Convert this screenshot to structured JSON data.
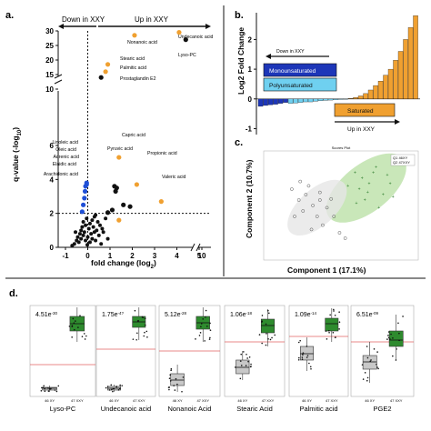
{
  "colors": {
    "orange": "#f0a030",
    "blue": "#1f4fd6",
    "black": "#111111",
    "dark_blue": "#1d36b8",
    "light_blue": "#6fd0f0",
    "green_ellipse": "#bfe3ad",
    "green_box": "#2e8b2e",
    "grey_box": "#c8c8c8",
    "red_line": "#e06060"
  },
  "panel_a": {
    "letter": "a.",
    "down_label": "Down  in XXY",
    "up_label": "Up in XXY",
    "xlabel": "fold change (log",
    "xlabel_sub": "2",
    "xlabel_end": ")",
    "ylabel": "q-value (-log",
    "ylabel_sub": "10",
    "ylabel_end": ")",
    "labels": [
      "Undecanoic acid",
      "Nonanoic acid",
      "Lyso-PC",
      "Stearic acid",
      "Palmitic acid",
      "Prostaglandin E2",
      "Capric acid",
      "Pyruvic acid",
      "Propionic acid",
      "Valeric acid",
      "Linoleic acid",
      "Oleic acid",
      "Adrenic acid",
      "Elaidic acid",
      "Arachidonic acid"
    ]
  },
  "panel_b": {
    "letter": "b.",
    "ylabel": "Log2 Fold Change",
    "down_label": "Down in XXY",
    "up_label": "Up in XXY",
    "legend_mono": "Monounsaturated",
    "legend_poly": "Polyunsaturated",
    "legend_sat": "Saturated"
  },
  "panel_c": {
    "letter": "c.",
    "title": "Scores Plot",
    "xlabel": "Component 1 (17.1%)",
    "ylabel": "Component 2 (10.7%)",
    "legend": [
      "Q1 46XY",
      "Q2 47XXY"
    ]
  },
  "panel_d": {
    "letter": "d.",
    "x_tick_labels": [
      "46 XY",
      "47 XXY"
    ]
  },
  "chart_data": [
    {
      "type": "scatter",
      "panel": "a",
      "xlabel": "fold change (log2)",
      "ylabel": "q-value (-log10)",
      "x_ticks": [
        "-1",
        "0",
        "1",
        "2",
        "3",
        "4",
        "5",
        "10"
      ],
      "y_ticks": [
        "0",
        "2",
        "4",
        "6",
        "10",
        "15",
        "20",
        "25",
        "30"
      ],
      "threshold_y": 2,
      "series": [
        {
          "color": "orange",
          "points": [
            {
              "label": "Undecanoic acid",
              "x": 4.1,
              "y": 29.5
            },
            {
              "label": "Nonanoic acid",
              "x": 2.1,
              "y": 28.5
            },
            {
              "label": "Stearic acid",
              "x": 0.9,
              "y": 18.5
            },
            {
              "label": "Palmitic acid",
              "x": 0.8,
              "y": 16.0
            },
            {
              "label": "Capric acid",
              "x": 1.4,
              "y": 5.3
            },
            {
              "label": "Propionic acid",
              "x": 2.2,
              "y": 3.7
            },
            {
              "label": "Valeric acid",
              "x": 3.3,
              "y": 2.7
            },
            {
              "label": "",
              "x": 1.4,
              "y": 1.6
            }
          ]
        },
        {
          "color": "black",
          "points": [
            {
              "label": "Lyso-PC",
              "x": 4.4,
              "y": 27.0
            },
            {
              "label": "Prostaglandin E2",
              "x": 0.6,
              "y": 14.0
            },
            {
              "label": "Pyruvic acid",
              "x": 1.2,
              "y": 3.6
            },
            {
              "label": "",
              "x": 1.3,
              "y": 3.5
            },
            {
              "label": "",
              "x": 1.25,
              "y": 3.3
            },
            {
              "label": "",
              "x": 1.6,
              "y": 2.5
            },
            {
              "label": "",
              "x": 1.9,
              "y": 2.4
            },
            {
              "label": "",
              "x": 1.1,
              "y": 2.2
            },
            {
              "label": "",
              "x": 0.9,
              "y": 2.05
            }
          ]
        },
        {
          "color": "blue",
          "points": [
            {
              "label": "Linoleic acid",
              "x": -0.05,
              "y": 3.8
            },
            {
              "label": "Oleic acid",
              "x": -0.1,
              "y": 3.6
            },
            {
              "label": "Adrenic acid",
              "x": -0.12,
              "y": 3.3
            },
            {
              "label": "Elaidic acid",
              "x": -0.15,
              "y": 2.9
            },
            {
              "label": "Arachidonic acid",
              "x": -0.2,
              "y": 2.5
            },
            {
              "label": "",
              "x": -0.25,
              "y": 2.1
            },
            {
              "label": "",
              "x": -0.05,
              "y": 3.7
            }
          ]
        },
        {
          "color": "black_nonsig",
          "points": [
            {
              "x": -0.6,
              "y": 0.2
            },
            {
              "x": -0.5,
              "y": 0.4
            },
            {
              "x": -0.45,
              "y": 0.6
            },
            {
              "x": -0.4,
              "y": 0.3
            },
            {
              "x": -0.35,
              "y": 0.8
            },
            {
              "x": -0.3,
              "y": 1.0
            },
            {
              "x": -0.3,
              "y": 0.5
            },
            {
              "x": -0.25,
              "y": 1.2
            },
            {
              "x": -0.2,
              "y": 0.7
            },
            {
              "x": -0.2,
              "y": 1.5
            },
            {
              "x": -0.15,
              "y": 0.9
            },
            {
              "x": -0.1,
              "y": 1.3
            },
            {
              "x": -0.1,
              "y": 0.4
            },
            {
              "x": -0.05,
              "y": 1.7
            },
            {
              "x": 0.0,
              "y": 0.6
            },
            {
              "x": 0.05,
              "y": 1.1
            },
            {
              "x": 0.1,
              "y": 0.3
            },
            {
              "x": 0.1,
              "y": 1.4
            },
            {
              "x": 0.15,
              "y": 0.8
            },
            {
              "x": 0.2,
              "y": 1.6
            },
            {
              "x": 0.2,
              "y": 0.5
            },
            {
              "x": 0.25,
              "y": 1.2
            },
            {
              "x": 0.3,
              "y": 0.9
            },
            {
              "x": 0.3,
              "y": 1.8
            },
            {
              "x": 0.35,
              "y": 0.4
            },
            {
              "x": 0.4,
              "y": 1.0
            },
            {
              "x": 0.45,
              "y": 1.5
            },
            {
              "x": 0.5,
              "y": 0.7
            },
            {
              "x": 0.55,
              "y": 1.3
            },
            {
              "x": 0.6,
              "y": 0.2
            },
            {
              "x": 0.7,
              "y": 0.9
            },
            {
              "x": 0.8,
              "y": 1.7
            },
            {
              "x": -0.7,
              "y": 0.1
            },
            {
              "x": -0.55,
              "y": 0.9
            },
            {
              "x": 0.65,
              "y": 1.1
            },
            {
              "x": 0.35,
              "y": 1.9
            },
            {
              "x": -0.02,
              "y": 0.15
            },
            {
              "x": 0.9,
              "y": 0.5
            }
          ]
        }
      ]
    },
    {
      "type": "bar",
      "panel": "b",
      "ylabel": "Log2 Fold Change",
      "y_ticks": [
        -1,
        0,
        1,
        2
      ],
      "ylim": [
        -1.2,
        2.9
      ],
      "groups": [
        {
          "name": "Monounsaturated",
          "color": "dark_blue",
          "values": [
            -0.25,
            -0.22,
            -0.2,
            -0.18,
            -0.15,
            -0.12
          ]
        },
        {
          "name": "Polyunsaturated",
          "color": "light_blue",
          "values": [
            -0.15,
            -0.14,
            -0.12,
            -0.1,
            -0.1,
            -0.08,
            -0.06,
            -0.05,
            -0.04,
            -0.03,
            -0.02,
            -0.01
          ]
        },
        {
          "name": "Saturated",
          "color": "orange",
          "values": [
            0.02,
            0.05,
            0.1,
            0.18,
            0.3,
            0.45,
            0.6,
            0.8,
            1.0,
            1.3,
            1.6,
            2.0,
            2.4,
            2.8
          ]
        }
      ]
    },
    {
      "type": "scatter",
      "panel": "c",
      "title": "Scores Plot",
      "xlabel": "Component 1 (17.1%)",
      "ylabel": "Component 2 (10.7%)",
      "series": [
        {
          "name": "Q1 46XY",
          "color": "grey",
          "points": [
            [
              -3,
              1.5
            ],
            [
              -2.5,
              0.5
            ],
            [
              -2,
              1
            ],
            [
              -2.2,
              -0.5
            ],
            [
              -1.5,
              0
            ],
            [
              -1.8,
              1.8
            ],
            [
              -1,
              0.5
            ],
            [
              -1.2,
              -1
            ],
            [
              -0.5,
              -0.2
            ],
            [
              -2.8,
              -1
            ],
            [
              -0.8,
              -1.8
            ],
            [
              0,
              -1
            ],
            [
              -1.6,
              -2.2
            ],
            [
              -0.2,
              0.6
            ],
            [
              -2.4,
              2.2
            ],
            [
              0.4,
              -2.5
            ],
            [
              -1,
              1.2
            ],
            [
              0.8,
              -3
            ]
          ]
        },
        {
          "name": "Q2 47XXY",
          "color": "green",
          "points": [
            [
              1.5,
              3
            ],
            [
              2,
              2.5
            ],
            [
              2.5,
              2
            ],
            [
              3,
              3.5
            ],
            [
              1.8,
              1.5
            ],
            [
              3.5,
              1
            ],
            [
              2.2,
              0.5
            ],
            [
              4,
              2
            ],
            [
              3.2,
              -0.2
            ],
            [
              1,
              1.8
            ],
            [
              2.8,
              3
            ],
            [
              4.2,
              0.8
            ],
            [
              1.6,
              0.2
            ],
            [
              3.8,
              2.8
            ],
            [
              2.4,
              1.2
            ]
          ]
        }
      ]
    },
    {
      "type": "box",
      "panel": "d",
      "categories": [
        "Lyso-PC",
        "Undecanoic acid",
        "Nonanoic Acid",
        "Stearic Acid",
        "Palmitic acid",
        "PGE2"
      ],
      "p_values": [
        {
          "base": "4.51e",
          "exp": "-30"
        },
        {
          "base": "1.75e",
          "exp": "-4?"
        },
        {
          "base": "5.12e",
          "exp": "-28"
        },
        {
          "base": "1.06e",
          "exp": "-18"
        },
        {
          "base": "1.09e",
          "exp": "-14"
        },
        {
          "base": "6.51e",
          "exp": "-09"
        }
      ],
      "series": [
        {
          "name": "46 XY",
          "color": "grey_box",
          "boxes": [
            [
              0.05,
              0.07,
              0.09,
              0.1,
              0.12
            ],
            [
              0.05,
              0.07,
              0.09,
              0.11,
              0.13
            ],
            [
              0.05,
              0.12,
              0.18,
              0.25,
              0.35
            ],
            [
              0.18,
              0.25,
              0.32,
              0.4,
              0.5
            ],
            [
              0.28,
              0.4,
              0.47,
              0.55,
              0.65
            ],
            [
              0.15,
              0.3,
              0.38,
              0.45,
              0.6
            ]
          ]
        },
        {
          "name": "47 XXY",
          "color": "green_box",
          "boxes": [
            [
              0.6,
              0.72,
              0.8,
              0.88,
              0.98
            ],
            [
              0.62,
              0.76,
              0.82,
              0.88,
              0.98
            ],
            [
              0.6,
              0.74,
              0.81,
              0.88,
              0.98
            ],
            [
              0.55,
              0.7,
              0.78,
              0.85,
              0.96
            ],
            [
              0.6,
              0.72,
              0.8,
              0.86,
              0.97
            ],
            [
              0.4,
              0.55,
              0.62,
              0.72,
              0.9
            ]
          ]
        }
      ],
      "red_line": [
        0.35,
        0.52,
        0.5,
        0.6,
        0.66,
        0.6
      ]
    }
  ]
}
